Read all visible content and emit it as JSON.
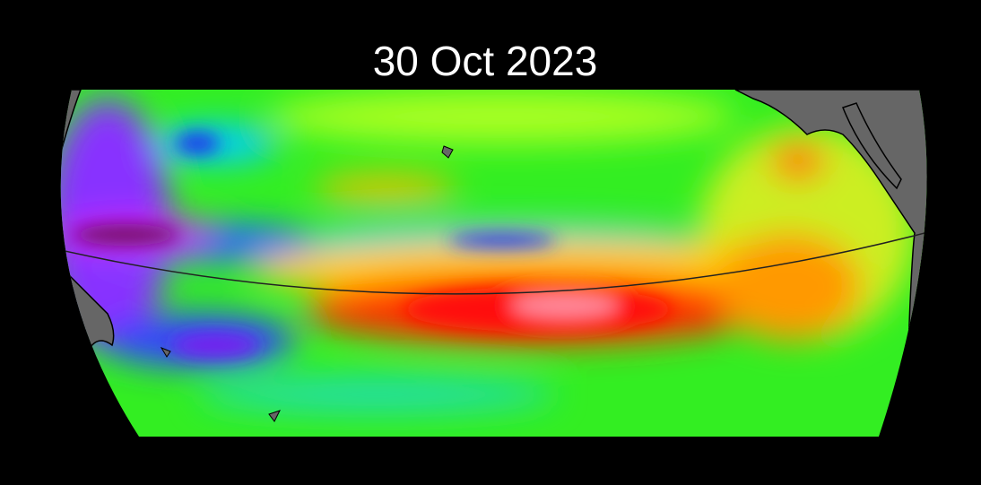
{
  "title": "30 Oct 2023"
}
